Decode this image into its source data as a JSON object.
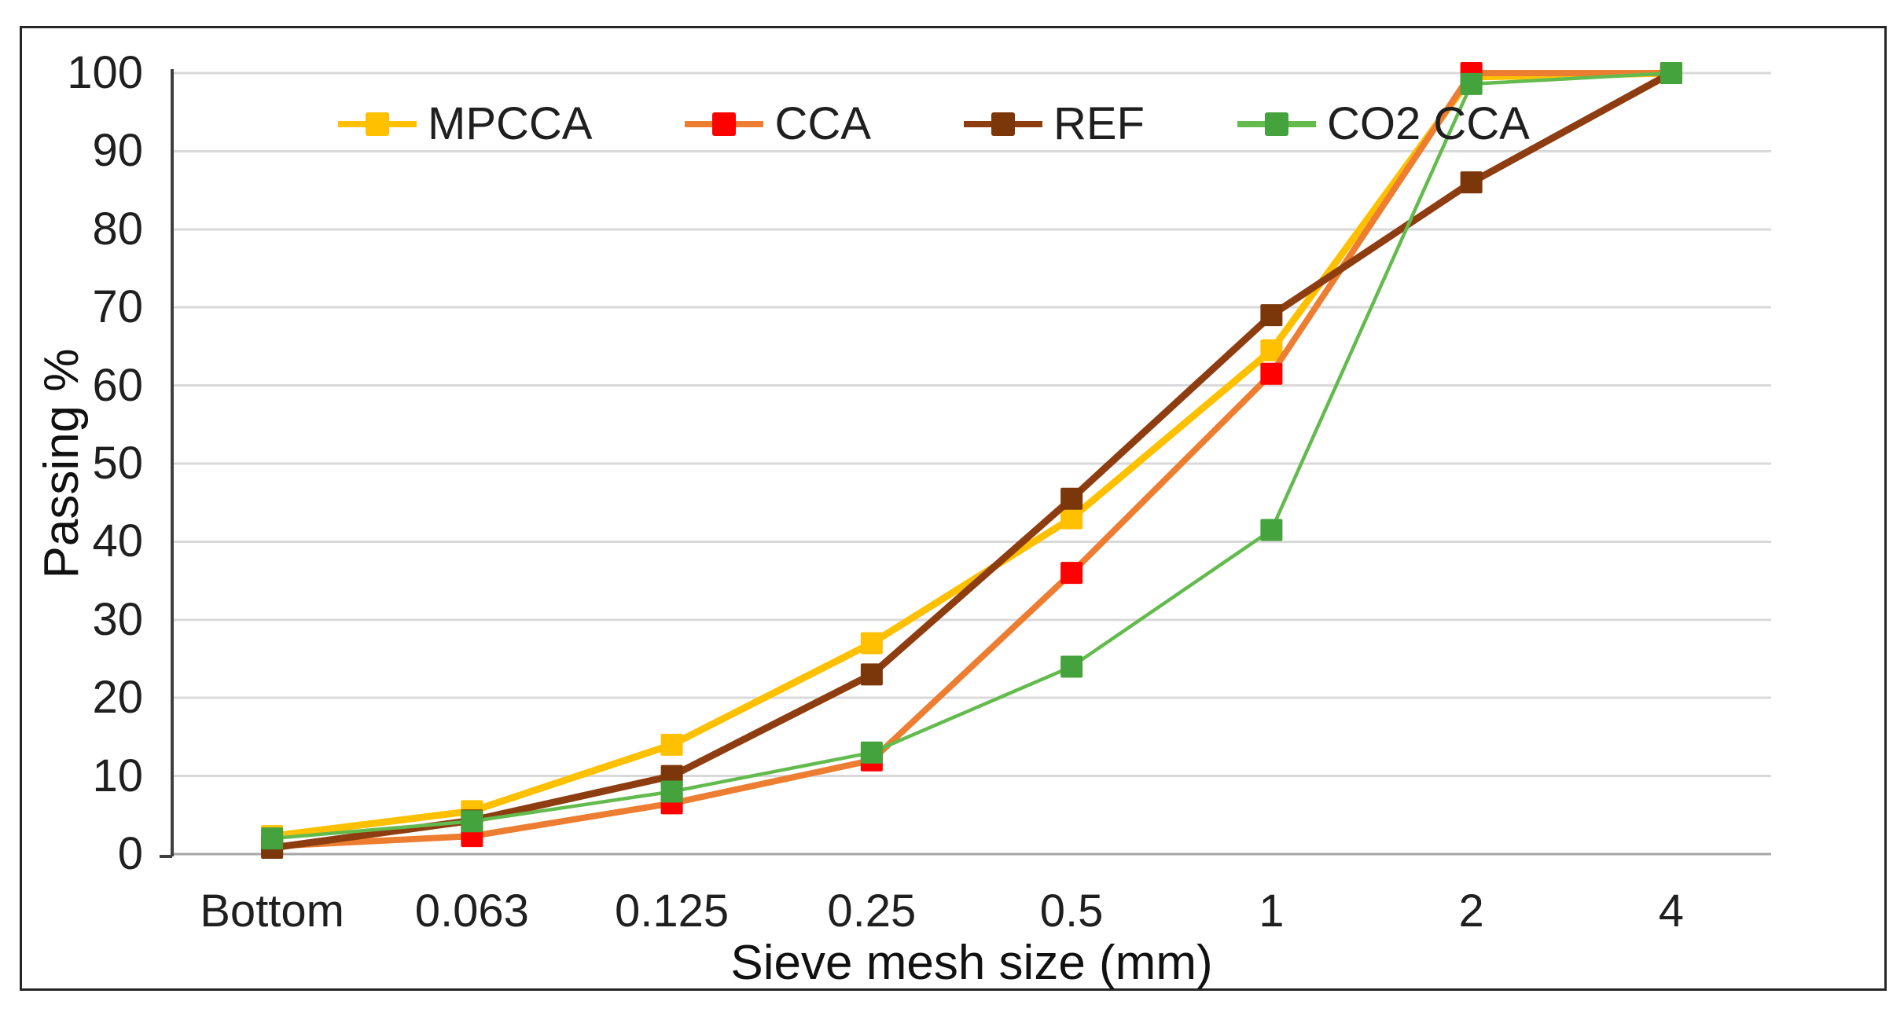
{
  "chart_data": {
    "type": "line",
    "title": "",
    "xlabel": "Sieve mesh size (mm)",
    "ylabel": "Passing %",
    "categories": [
      "Bottom",
      "0.063",
      "0.125",
      "0.25",
      "0.5",
      "1",
      "2",
      "4"
    ],
    "series": [
      {
        "name": "MPCCA",
        "values": [
          2.3,
          5.5,
          14,
          27,
          43,
          64.5,
          99.5,
          100
        ],
        "line_color": "#FFC000",
        "marker_color": "#FFC000",
        "line_width": 9
      },
      {
        "name": "CCA",
        "values": [
          1.0,
          2.3,
          6.5,
          12,
          36,
          61.5,
          100,
          100
        ],
        "line_color": "#ED7D31",
        "marker_color": "#FF0000",
        "line_width": 8
      },
      {
        "name": "REF",
        "values": [
          0.8,
          4.3,
          10,
          23,
          45.5,
          69,
          86,
          100
        ],
        "line_color": "#8E3D10",
        "marker_color": "#7B3709",
        "line_width": 9
      },
      {
        "name": "CO2 CCA",
        "values": [
          2.0,
          4.2,
          8,
          13,
          24,
          41.5,
          98.6,
          100
        ],
        "line_color": "#63BB4E",
        "marker_color": "#44A33C",
        "line_width": 4.5
      }
    ],
    "ylim": [
      0,
      100
    ],
    "yticks": [
      0,
      10,
      20,
      30,
      40,
      50,
      60,
      70,
      80,
      90,
      100
    ],
    "grid": true,
    "legend_position": "top",
    "gridline_color": "#D9D9D9",
    "baseline_color": "#A6A6A6",
    "yaxis_color": "#3F3F3F",
    "text_color": "#1F1F1F",
    "border_color": "#262626",
    "marker_size": 28
  }
}
